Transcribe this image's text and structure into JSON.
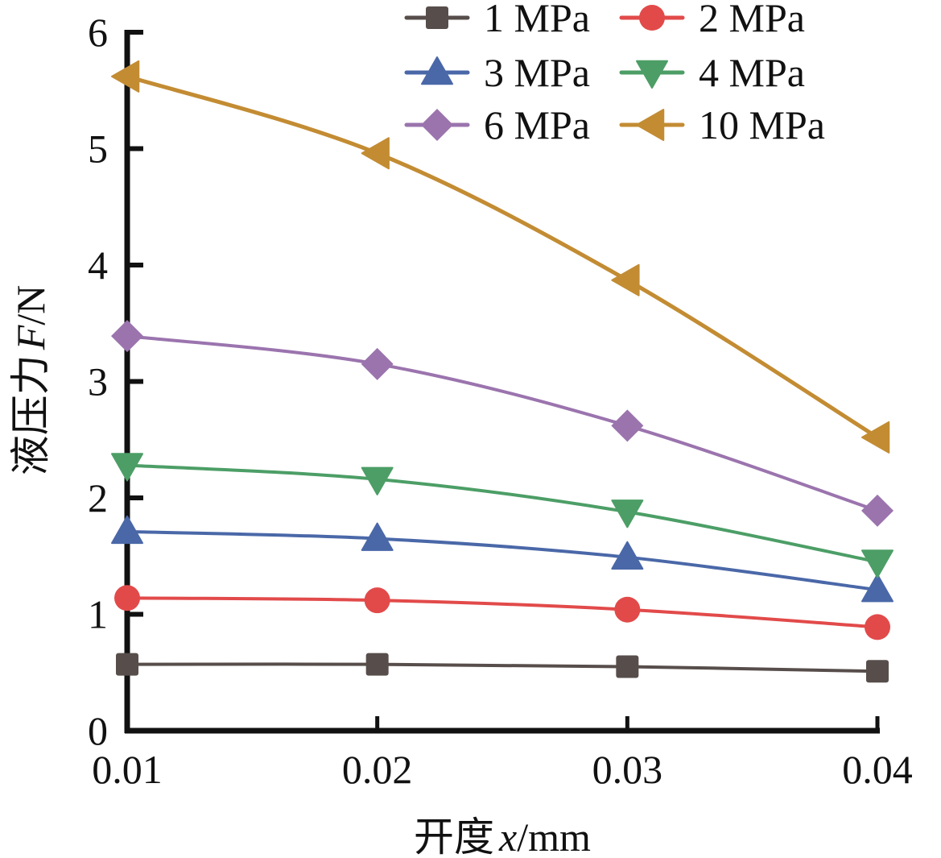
{
  "chart_data": {
    "type": "line",
    "title": "",
    "xlabel": "开度 x/mm",
    "xlabel_parts": {
      "prefix": "开度",
      "var": "x",
      "unit": "/mm"
    },
    "ylabel": "液压力 F/N",
    "ylabel_parts": {
      "prefix": "液压力",
      "var": "F",
      "unit": "/N"
    },
    "x": [
      0.01,
      0.02,
      0.03,
      0.04
    ],
    "x_tick_labels": [
      "0.01",
      "0.02",
      "0.03",
      "0.04"
    ],
    "xlim": [
      0.01,
      0.04
    ],
    "ylim": [
      0,
      6
    ],
    "y_ticks": [
      0,
      1,
      2,
      3,
      4,
      5,
      6
    ],
    "y_tick_labels": [
      "0",
      "1",
      "2",
      "3",
      "4",
      "5",
      "6"
    ],
    "grid": false,
    "legend_position": "top-right",
    "legend_columns": 2,
    "series": [
      {
        "name": "1 MPa",
        "color": "#574e4b",
        "marker": "square",
        "values": [
          0.57,
          0.57,
          0.55,
          0.51
        ]
      },
      {
        "name": "2 MPa",
        "color": "#e24a4a",
        "marker": "circle",
        "values": [
          1.14,
          1.12,
          1.04,
          0.89
        ]
      },
      {
        "name": "3 MPa",
        "color": "#4a68a8",
        "marker": "triangle-up",
        "values": [
          1.71,
          1.65,
          1.49,
          1.21
        ]
      },
      {
        "name": "4 MPa",
        "color": "#4c9e66",
        "marker": "triangle-down",
        "values": [
          2.28,
          2.16,
          1.88,
          1.45
        ]
      },
      {
        "name": "6 MPa",
        "color": "#9b74ae",
        "marker": "diamond",
        "values": [
          3.39,
          3.15,
          2.62,
          1.89
        ]
      },
      {
        "name": "10 MPa",
        "color": "#c38c33",
        "marker": "triangle-left",
        "values": [
          5.62,
          4.96,
          3.87,
          2.52
        ]
      }
    ]
  }
}
